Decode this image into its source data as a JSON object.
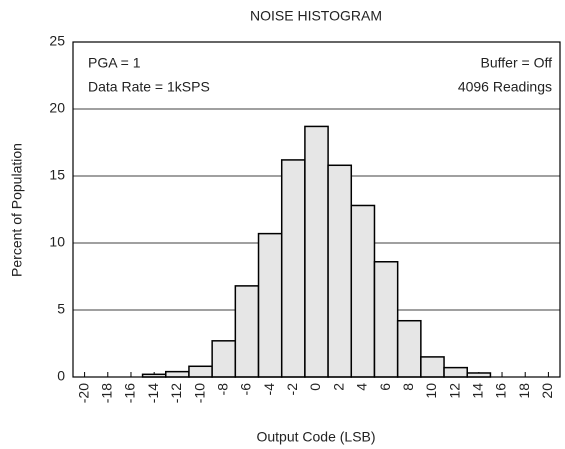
{
  "chart_data": {
    "type": "histogram",
    "title": "NOISE HISTOGRAM",
    "x_label": "Output Code (LSB)",
    "y_label": "Percent of Population",
    "annotations": [
      "PGA = 1",
      "Data Rate = 1kSPS",
      "Buffer = Off",
      "4096 Readings"
    ],
    "bins": [
      -15,
      -13,
      -11,
      -9,
      -7,
      -5,
      -3,
      -1,
      1,
      3,
      5,
      7,
      9,
      11,
      13,
      15
    ],
    "counts": [
      0.2,
      0.4,
      0.8,
      2.7,
      6.8,
      10.7,
      16.2,
      18.7,
      15.8,
      12.8,
      8.6,
      4.2,
      1.5,
      0.7,
      0.3
    ],
    "color": "#e6e6e6",
    "xlim": [
      -21,
      21
    ],
    "ylim": [
      0,
      25
    ],
    "xticks": [
      -20,
      -18,
      -16,
      -14,
      -12,
      -10,
      -8,
      -6,
      -4,
      -2,
      0,
      2,
      4,
      6,
      8,
      10,
      12,
      14,
      16,
      18,
      20
    ],
    "yticks": [
      0,
      5,
      10,
      15,
      20,
      25
    ],
    "grid": true
  }
}
